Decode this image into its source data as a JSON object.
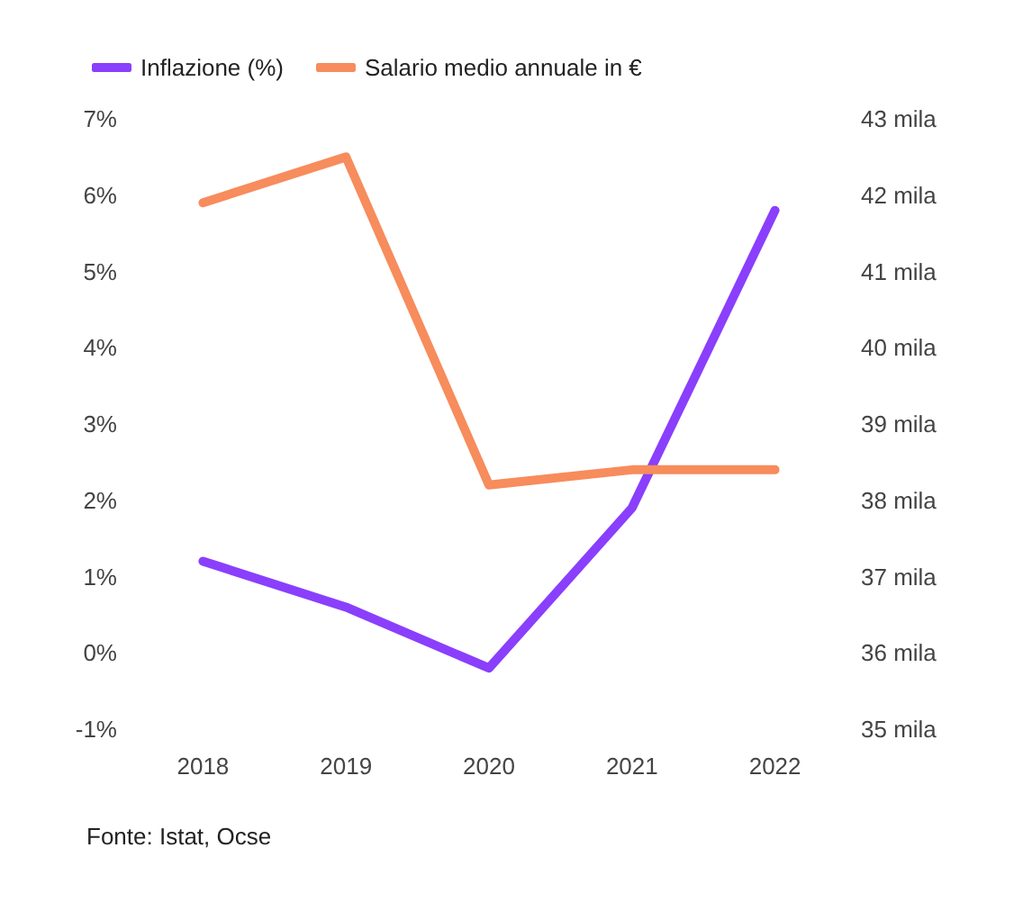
{
  "chart_data": {
    "type": "line",
    "categories": [
      "2018",
      "2019",
      "2020",
      "2021",
      "2022"
    ],
    "series": [
      {
        "name": "Inflazione (%)",
        "color": "#8a3ffc",
        "values": [
          1.2,
          0.6,
          -0.2,
          1.9,
          5.8
        ]
      },
      {
        "name": "Salario medio annuale in €",
        "color": "#f78c5c",
        "values": [
          41.9,
          42.5,
          38.2,
          38.4,
          38.4
        ],
        "axis": "y2"
      }
    ],
    "ylim": [
      -1,
      7
    ],
    "yticks": [
      {
        "value": -1,
        "label": "-1%"
      },
      {
        "value": 0,
        "label": "0%"
      },
      {
        "value": 1,
        "label": "1%"
      },
      {
        "value": 2,
        "label": "2%"
      },
      {
        "value": 3,
        "label": "3%"
      },
      {
        "value": 4,
        "label": "4%"
      },
      {
        "value": 5,
        "label": "5%"
      },
      {
        "value": 6,
        "label": "6%"
      },
      {
        "value": 7,
        "label": "7%"
      }
    ],
    "y2lim": [
      35,
      43
    ],
    "y2ticks": [
      {
        "value": 35,
        "label": "35 mila"
      },
      {
        "value": 36,
        "label": "36 mila"
      },
      {
        "value": 37,
        "label": "37 mila"
      },
      {
        "value": 38,
        "label": "38 mila"
      },
      {
        "value": 39,
        "label": "39 mila"
      },
      {
        "value": 40,
        "label": "40 mila"
      },
      {
        "value": 41,
        "label": "41 mila"
      },
      {
        "value": 42,
        "label": "42 mila"
      },
      {
        "value": 43,
        "label": "43 mila"
      }
    ],
    "legend": "top left",
    "grid": false,
    "marker": "none",
    "line_style": "solid",
    "annotations": [
      "Fonte: Istat, Ocse"
    ]
  }
}
